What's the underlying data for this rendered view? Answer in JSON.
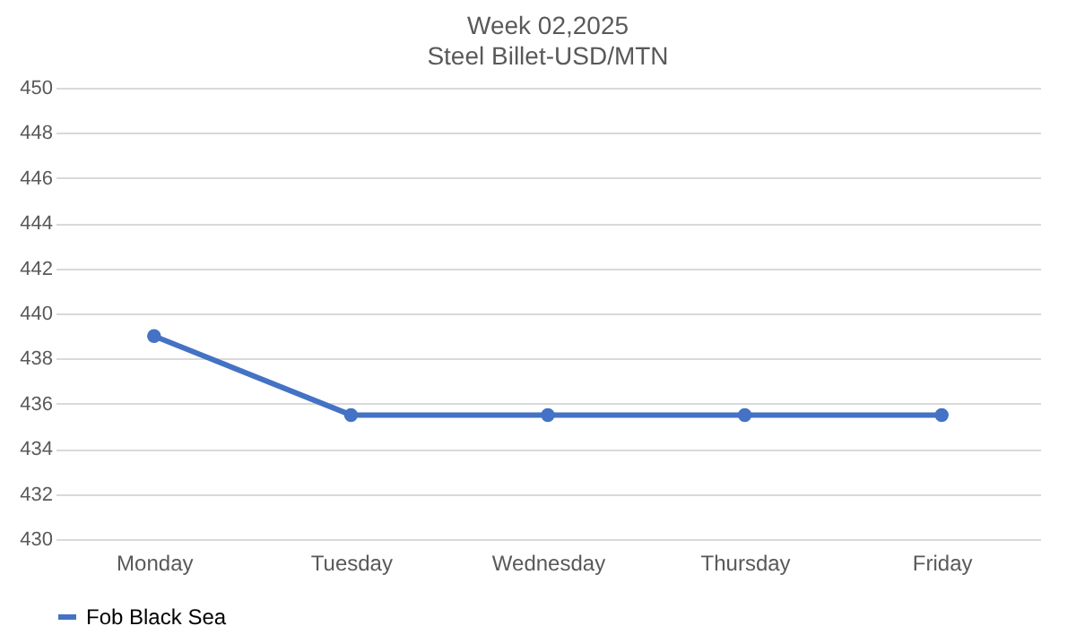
{
  "chart_data": {
    "type": "line",
    "title": "Week 02,2025",
    "subtitle": "Steel Billet-USD/MTN",
    "categories": [
      "Monday",
      "Tuesday",
      "Wednesday",
      "Thursday",
      "Friday"
    ],
    "series": [
      {
        "name": "Fob Black Sea",
        "color": "#4472c4",
        "values": [
          439,
          435.5,
          435.5,
          435.5,
          435.5
        ]
      }
    ],
    "ylim": [
      430,
      450
    ],
    "yticks": [
      430,
      432,
      434,
      436,
      438,
      440,
      442,
      444,
      446,
      448,
      450
    ],
    "grid": "y",
    "legend": "bottom",
    "marker": "circle",
    "line_style": "solid"
  }
}
